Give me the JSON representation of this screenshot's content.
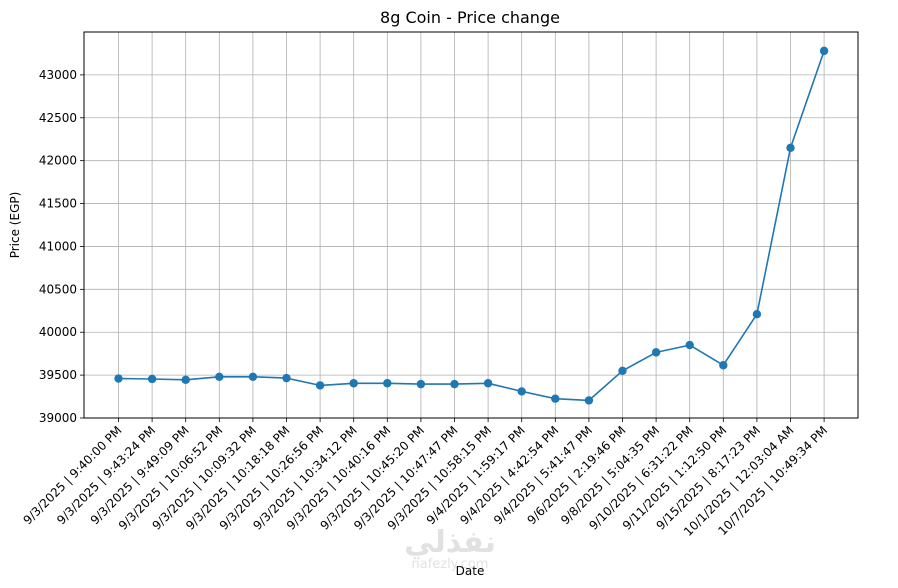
{
  "chart_data": {
    "type": "line",
    "title": "8g Coin - Price change",
    "xlabel": "Date",
    "ylabel": "Price (EGP)",
    "ylim": [
      39000,
      43500
    ],
    "yticks": [
      39000,
      39500,
      40000,
      40500,
      41000,
      41500,
      42000,
      42500,
      43000
    ],
    "grid": true,
    "marker": "circle",
    "line_color": "#1f77b4",
    "categories": [
      "9/3/2025 |  9:40:00 PM",
      "9/3/2025 |  9:43:24 PM",
      "9/3/2025 |  9:49:09 PM",
      "9/3/2025 |  10:06:52 PM",
      "9/3/2025 |  10:09:32 PM",
      "9/3/2025 | 10:18:18 PM",
      "9/3/2025 | 10:26:56 PM",
      "9/3/2025 | 10:34:12 PM",
      "9/3/2025 | 10:40:16 PM",
      "9/3/2025 | 10:45:20 PM",
      "9/3/2025 | 10:47:47 PM",
      "9/3/2025 | 10:58:15 PM",
      "9/4/2025 | 1:59:17 PM",
      "9/4/2025 | 4:42:54 PM",
      "9/4/2025 | 5:41:47 PM",
      "9/6/2025 | 2:19:46 PM",
      "9/8/2025 | 5:04:35 PM",
      "9/10/2025 | 6:31:22 PM",
      "9/11/2025 | 1:12:50 PM",
      "9/15/2025 | 8:17:23 PM",
      "10/1/2025 | 12:03:04 AM",
      "10/7/2025 | 10:49:34 PM"
    ],
    "values": [
      39460,
      39455,
      39445,
      39480,
      39480,
      39465,
      39380,
      39405,
      39405,
      39395,
      39395,
      39405,
      39310,
      39225,
      39205,
      39550,
      39765,
      39850,
      39615,
      40210,
      42150,
      43280
    ]
  },
  "watermark": {
    "logo_text": "نفذلي",
    "site": "nafezly.com"
  }
}
